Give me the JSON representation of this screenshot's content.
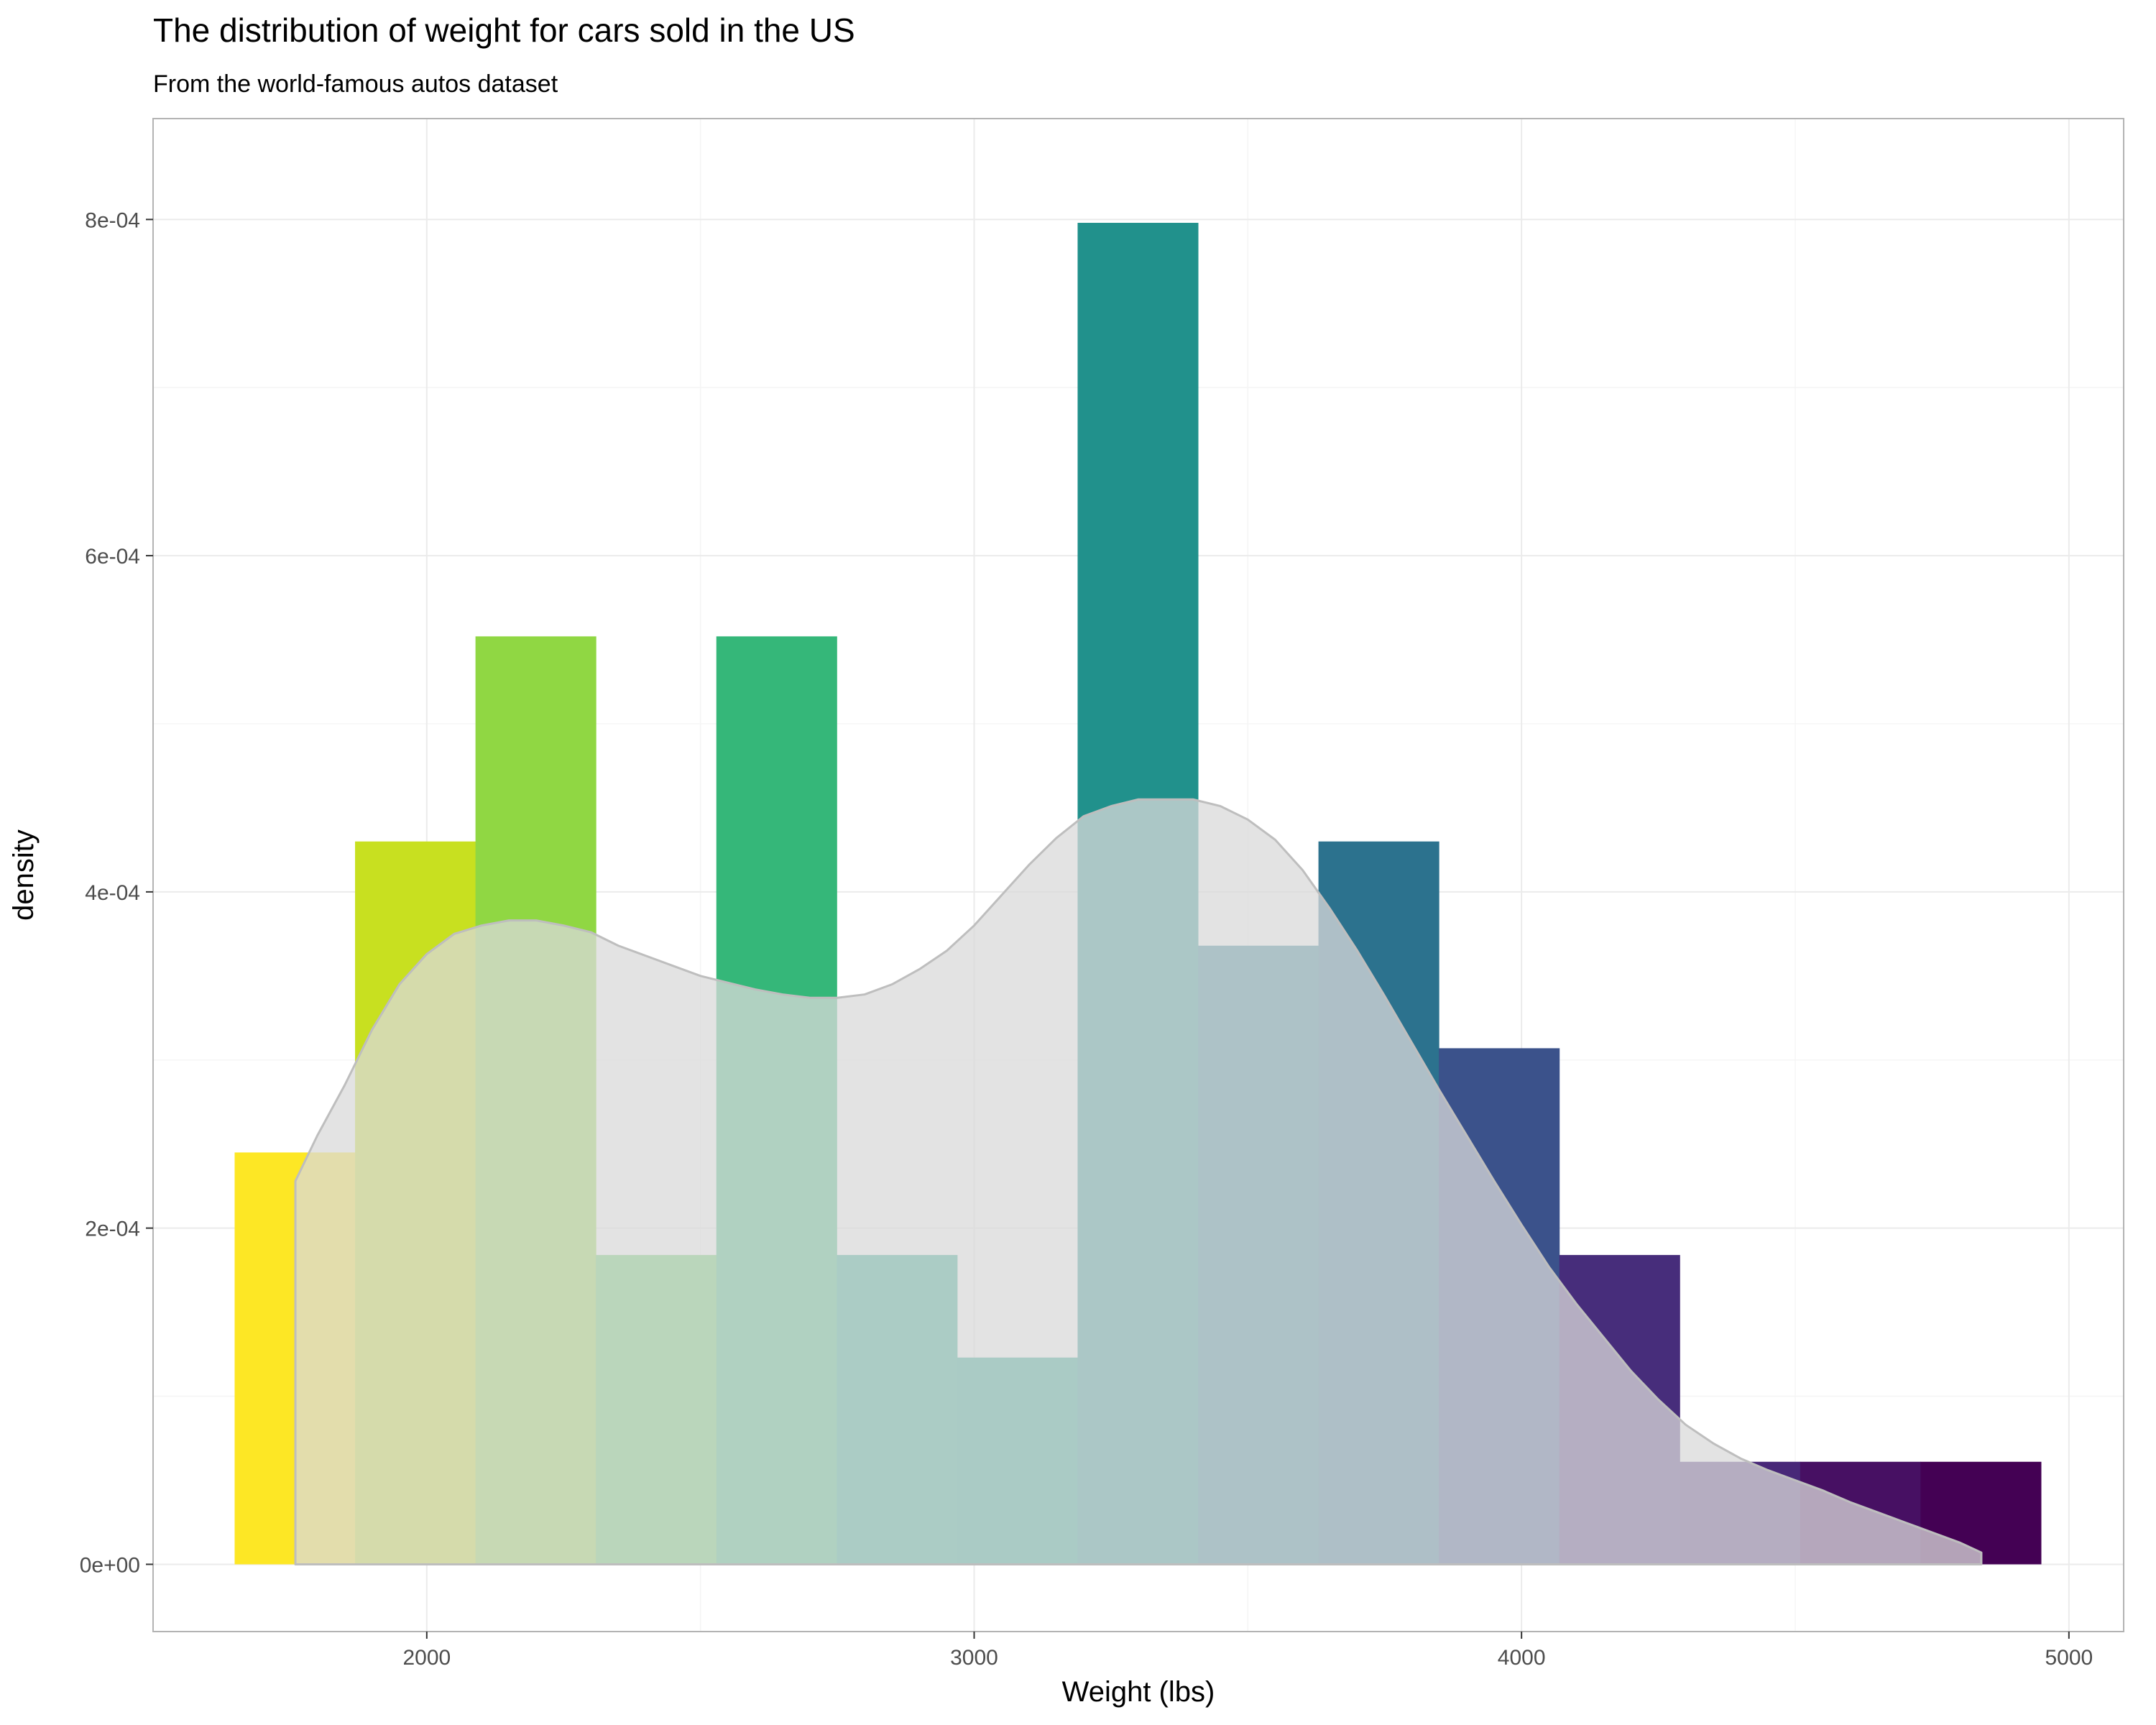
{
  "chart_data": {
    "type": "histogram",
    "title": "The distribution of weight for cars sold in the US",
    "subtitle": "From the world-famous autos dataset",
    "xlabel": "Weight (lbs)",
    "ylabel": "density",
    "xlim": [
      1500,
      5100
    ],
    "ylim": [
      -4e-05,
      0.00086
    ],
    "x_ticks": [
      2000,
      3000,
      4000,
      5000
    ],
    "x_tick_labels": [
      "2000",
      "3000",
      "4000",
      "5000"
    ],
    "y_ticks": [
      0,
      0.0002,
      0.0004,
      0.0006,
      0.0008
    ],
    "y_tick_labels": [
      "0e+00",
      "2e-04",
      "4e-04",
      "6e-04",
      "8e-04"
    ],
    "grid": true,
    "bins": [
      {
        "x0": 1649,
        "x1": 1869,
        "density": 0.000245,
        "color": "#fde725"
      },
      {
        "x0": 1869,
        "x1": 2089,
        "density": 0.00043,
        "color": "#c8e020"
      },
      {
        "x0": 2089,
        "x1": 2309,
        "density": 0.000552,
        "color": "#90d743"
      },
      {
        "x0": 2309,
        "x1": 2529,
        "density": 0.000184,
        "color": "#5ec962"
      },
      {
        "x0": 2529,
        "x1": 2749,
        "density": 0.000552,
        "color": "#35b779"
      },
      {
        "x0": 2749,
        "x1": 2969,
        "density": 0.000184,
        "color": "#20a486"
      },
      {
        "x0": 2969,
        "x1": 3189,
        "density": 0.000123,
        "color": "#1f9e89"
      },
      {
        "x0": 3189,
        "x1": 3409,
        "density": 0.000798,
        "color": "#21918c"
      },
      {
        "x0": 3409,
        "x1": 3629,
        "density": 0.000368,
        "color": "#287c8e"
      },
      {
        "x0": 3629,
        "x1": 3849,
        "density": 0.00043,
        "color": "#2c728e"
      },
      {
        "x0": 3849,
        "x1": 4069,
        "density": 0.000307,
        "color": "#3b528b"
      },
      {
        "x0": 4069,
        "x1": 4289,
        "density": 0.000184,
        "color": "#472d7b"
      },
      {
        "x0": 4289,
        "x1": 4509,
        "density": 6.1e-05,
        "color": "#482878"
      },
      {
        "x0": 4509,
        "x1": 4729,
        "density": 6.1e-05,
        "color": "#471063"
      },
      {
        "x0": 4729,
        "x1": 4949,
        "density": 6.1e-05,
        "color": "#440154"
      }
    ],
    "density_curve": {
      "fill": "#d9d9d9",
      "fill_opacity": 0.75,
      "stroke": "#bebebe",
      "points": [
        [
          1760,
          0.000228
        ],
        [
          1800,
          0.000255
        ],
        [
          1850,
          0.000285
        ],
        [
          1900,
          0.000318
        ],
        [
          1950,
          0.000345
        ],
        [
          2000,
          0.000363
        ],
        [
          2050,
          0.000375
        ],
        [
          2100,
          0.00038
        ],
        [
          2150,
          0.000383
        ],
        [
          2200,
          0.000383
        ],
        [
          2250,
          0.00038
        ],
        [
          2300,
          0.000376
        ],
        [
          2350,
          0.000368
        ],
        [
          2400,
          0.000362
        ],
        [
          2450,
          0.000356
        ],
        [
          2500,
          0.00035
        ],
        [
          2550,
          0.000346
        ],
        [
          2600,
          0.000342
        ],
        [
          2650,
          0.000339
        ],
        [
          2700,
          0.000337
        ],
        [
          2750,
          0.000337
        ],
        [
          2800,
          0.000339
        ],
        [
          2850,
          0.000345
        ],
        [
          2900,
          0.000354
        ],
        [
          2950,
          0.000365
        ],
        [
          3000,
          0.00038
        ],
        [
          3050,
          0.000398
        ],
        [
          3100,
          0.000416
        ],
        [
          3150,
          0.000432
        ],
        [
          3200,
          0.000445
        ],
        [
          3250,
          0.000451
        ],
        [
          3300,
          0.000455
        ],
        [
          3350,
          0.000455
        ],
        [
          3400,
          0.000455
        ],
        [
          3450,
          0.000451
        ],
        [
          3500,
          0.000443
        ],
        [
          3550,
          0.000431
        ],
        [
          3600,
          0.000413
        ],
        [
          3650,
          0.00039
        ],
        [
          3700,
          0.000365
        ],
        [
          3750,
          0.000338
        ],
        [
          3800,
          0.00031
        ],
        [
          3850,
          0.000282
        ],
        [
          3900,
          0.000255
        ],
        [
          3950,
          0.000228
        ],
        [
          4000,
          0.000202
        ],
        [
          4050,
          0.000177
        ],
        [
          4100,
          0.000155
        ],
        [
          4150,
          0.000135
        ],
        [
          4200,
          0.000115
        ],
        [
          4250,
          9.8e-05
        ],
        [
          4300,
          8.3e-05
        ],
        [
          4350,
          7.2e-05
        ],
        [
          4400,
          6.3e-05
        ],
        [
          4450,
          5.6e-05
        ],
        [
          4500,
          5e-05
        ],
        [
          4550,
          4.4e-05
        ],
        [
          4600,
          3.7e-05
        ],
        [
          4650,
          3.1e-05
        ],
        [
          4700,
          2.5e-05
        ],
        [
          4750,
          1.9e-05
        ],
        [
          4800,
          1.3e-05
        ],
        [
          4840,
          7e-06
        ]
      ]
    },
    "colors": {
      "panel_border": "#b3b3b3",
      "grid_major": "#ebebeb",
      "grid_minor": "#f5f5f5",
      "tick": "#333333"
    }
  }
}
